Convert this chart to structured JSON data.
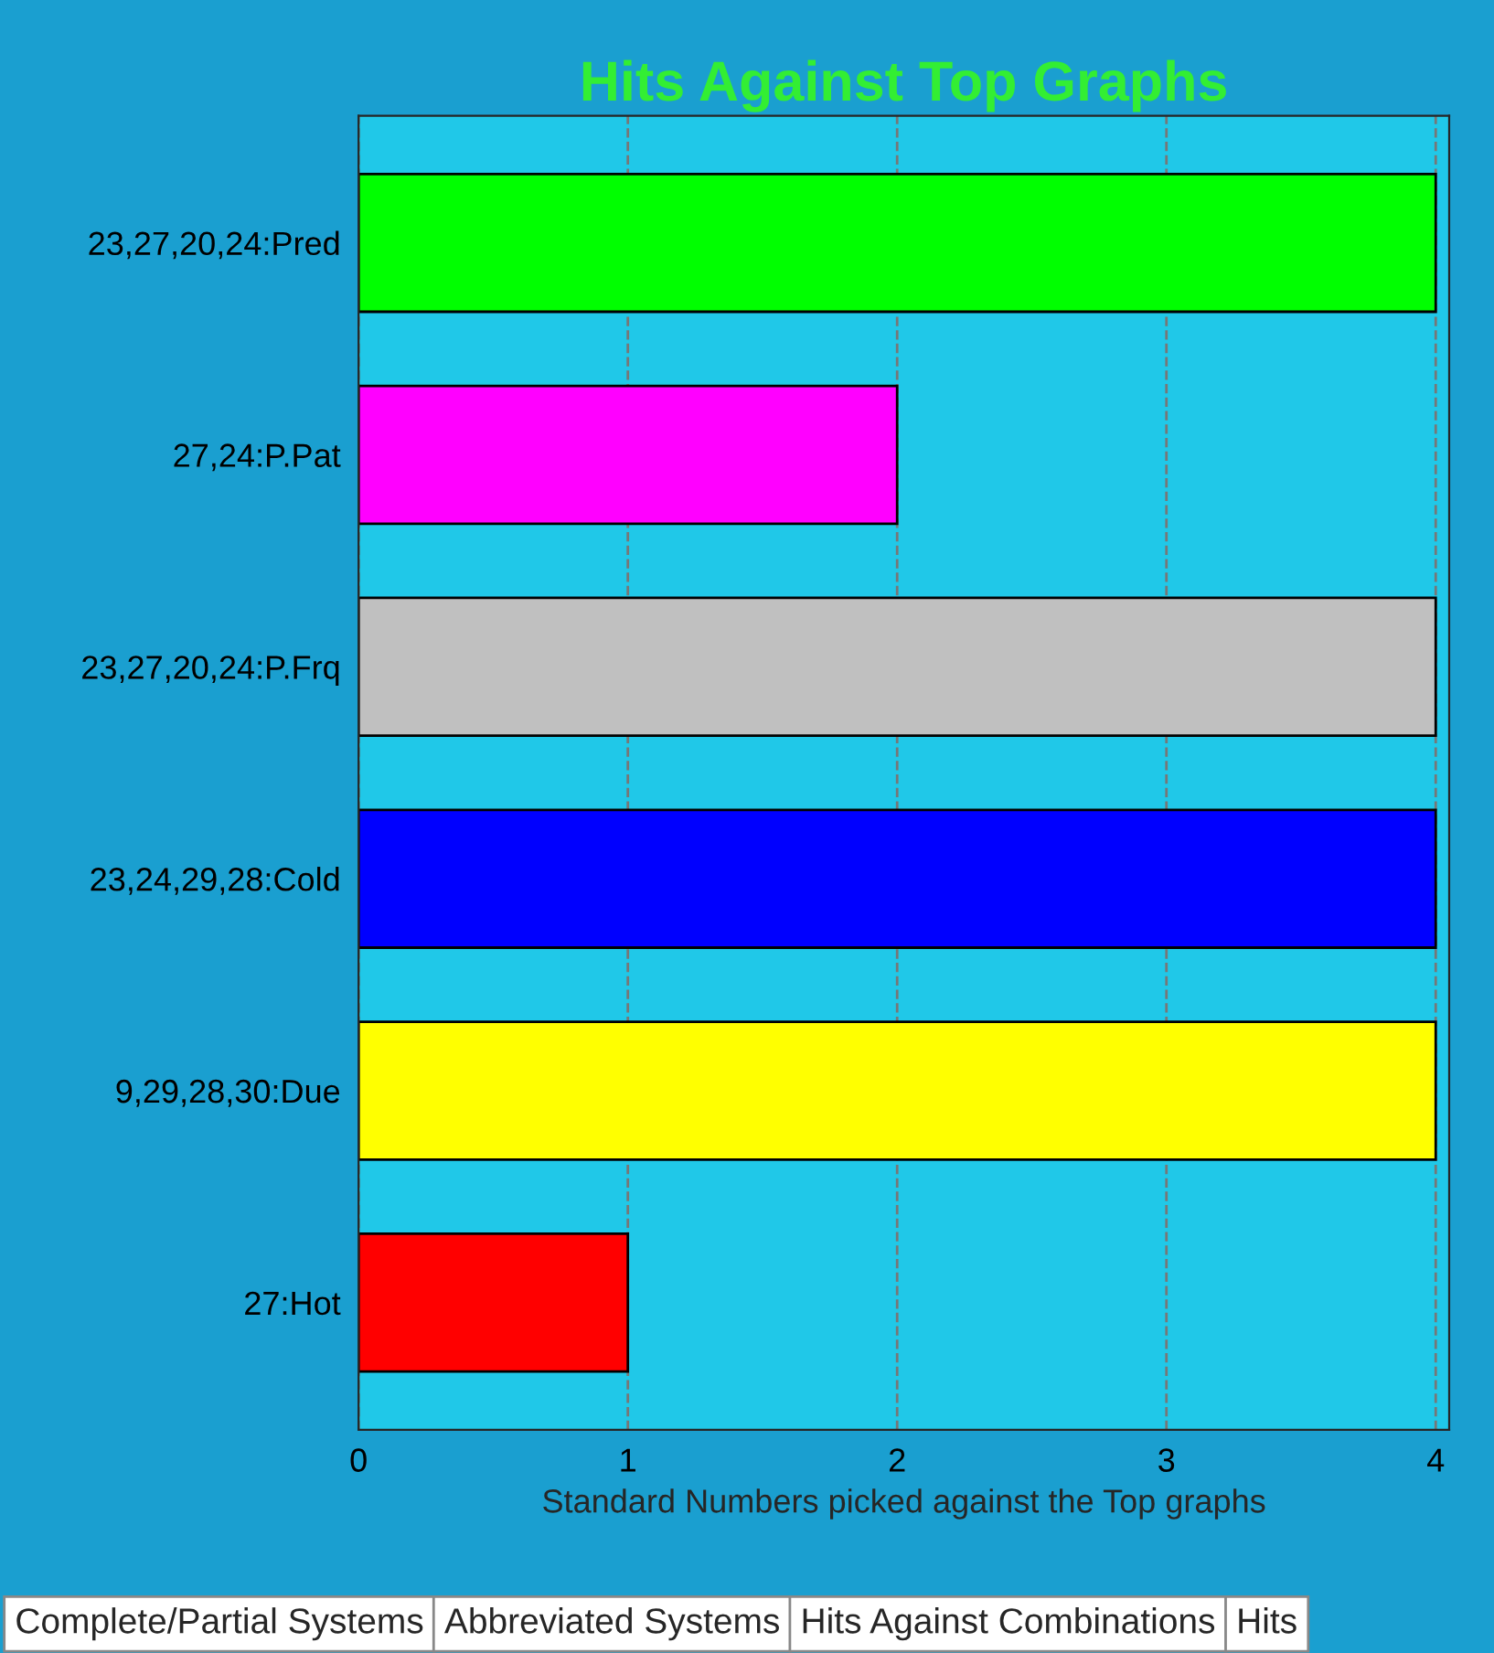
{
  "chart_data": {
    "type": "bar",
    "orientation": "horizontal",
    "title": "Hits Against Top Graphs",
    "xlabel": "Standard Numbers picked against the Top graphs",
    "categories": [
      "23,27,20,24:Pred",
      "27,24:P.Pat",
      "23,27,20,24:P.Frq",
      "23,24,29,28:Cold",
      "9,29,28,30:Due",
      "27:Hot"
    ],
    "values": [
      4,
      2,
      4,
      4,
      4,
      1
    ],
    "colors": [
      "#00ff00",
      "#ff00ff",
      "#c0c0c0",
      "#0000ff",
      "#ffff00",
      "#ff0000"
    ],
    "xlim": [
      0,
      4.05
    ],
    "xticks": [
      0,
      1,
      2,
      3,
      4
    ],
    "grid": "x",
    "legend": false,
    "annotations": [
      "Complete/Partial Systems",
      "Abbreviated Systems",
      "Hits Against Combinations",
      "Hits"
    ]
  }
}
